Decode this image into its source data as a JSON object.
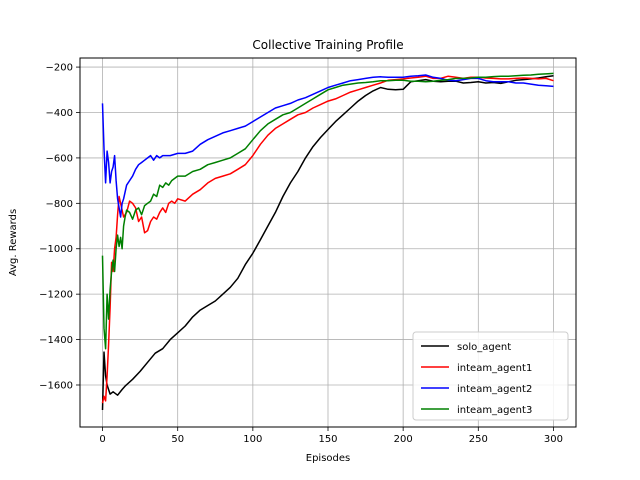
{
  "chart_data": {
    "type": "line",
    "title": "Collective Training Profile",
    "xlabel": "Episodes",
    "ylabel": "Avg. Rewards",
    "xlim": [
      -15,
      315
    ],
    "ylim": [
      -1785,
      -160
    ],
    "xticks": [
      0,
      50,
      100,
      150,
      200,
      250,
      300
    ],
    "yticks": [
      -1600,
      -1400,
      -1200,
      -1000,
      -800,
      -600,
      -400,
      -200
    ],
    "grid": true,
    "legend_position": "lower-right",
    "series": [
      {
        "name": "solo_agent",
        "color": "#000000",
        "points": [
          [
            0,
            -1710
          ],
          [
            1,
            -1455
          ],
          [
            2,
            -1560
          ],
          [
            3,
            -1600
          ],
          [
            5,
            -1640
          ],
          [
            7,
            -1630
          ],
          [
            10,
            -1645
          ],
          [
            13,
            -1620
          ],
          [
            15,
            -1605
          ],
          [
            20,
            -1575
          ],
          [
            25,
            -1540
          ],
          [
            30,
            -1500
          ],
          [
            35,
            -1460
          ],
          [
            40,
            -1440
          ],
          [
            45,
            -1400
          ],
          [
            50,
            -1370
          ],
          [
            55,
            -1340
          ],
          [
            60,
            -1300
          ],
          [
            65,
            -1270
          ],
          [
            70,
            -1250
          ],
          [
            75,
            -1230
          ],
          [
            80,
            -1200
          ],
          [
            85,
            -1170
          ],
          [
            90,
            -1130
          ],
          [
            95,
            -1070
          ],
          [
            100,
            -1020
          ],
          [
            105,
            -960
          ],
          [
            110,
            -900
          ],
          [
            115,
            -840
          ],
          [
            120,
            -770
          ],
          [
            125,
            -710
          ],
          [
            130,
            -660
          ],
          [
            135,
            -600
          ],
          [
            140,
            -550
          ],
          [
            145,
            -510
          ],
          [
            150,
            -475
          ],
          [
            155,
            -440
          ],
          [
            160,
            -410
          ],
          [
            165,
            -380
          ],
          [
            170,
            -350
          ],
          [
            175,
            -325
          ],
          [
            180,
            -305
          ],
          [
            185,
            -290
          ],
          [
            190,
            -298
          ],
          [
            195,
            -300
          ],
          [
            200,
            -298
          ],
          [
            205,
            -265
          ],
          [
            210,
            -260
          ],
          [
            215,
            -255
          ],
          [
            220,
            -262
          ],
          [
            225,
            -265
          ],
          [
            230,
            -262
          ],
          [
            235,
            -262
          ],
          [
            240,
            -270
          ],
          [
            245,
            -268
          ],
          [
            250,
            -265
          ],
          [
            255,
            -270
          ],
          [
            260,
            -268
          ],
          [
            265,
            -272
          ],
          [
            270,
            -265
          ],
          [
            275,
            -258
          ],
          [
            280,
            -255
          ],
          [
            285,
            -252
          ],
          [
            290,
            -248
          ],
          [
            295,
            -243
          ],
          [
            300,
            -238
          ]
        ]
      },
      {
        "name": "inteam_agent1",
        "color": "#ff0000",
        "points": [
          [
            0,
            -1680
          ],
          [
            1,
            -1650
          ],
          [
            2,
            -1670
          ],
          [
            3,
            -1560
          ],
          [
            4,
            -1420
          ],
          [
            5,
            -1260
          ],
          [
            6,
            -1060
          ],
          [
            7,
            -1100
          ],
          [
            8,
            -1000
          ],
          [
            9,
            -950
          ],
          [
            10,
            -850
          ],
          [
            11,
            -770
          ],
          [
            12,
            -800
          ],
          [
            14,
            -860
          ],
          [
            16,
            -840
          ],
          [
            18,
            -790
          ],
          [
            20,
            -800
          ],
          [
            22,
            -820
          ],
          [
            24,
            -880
          ],
          [
            26,
            -860
          ],
          [
            28,
            -930
          ],
          [
            30,
            -920
          ],
          [
            32,
            -880
          ],
          [
            34,
            -860
          ],
          [
            36,
            -870
          ],
          [
            38,
            -840
          ],
          [
            40,
            -820
          ],
          [
            42,
            -840
          ],
          [
            44,
            -800
          ],
          [
            46,
            -790
          ],
          [
            48,
            -800
          ],
          [
            50,
            -780
          ],
          [
            55,
            -790
          ],
          [
            60,
            -760
          ],
          [
            65,
            -740
          ],
          [
            70,
            -710
          ],
          [
            75,
            -690
          ],
          [
            80,
            -680
          ],
          [
            85,
            -670
          ],
          [
            90,
            -650
          ],
          [
            95,
            -630
          ],
          [
            100,
            -590
          ],
          [
            105,
            -540
          ],
          [
            110,
            -500
          ],
          [
            115,
            -470
          ],
          [
            120,
            -450
          ],
          [
            125,
            -430
          ],
          [
            130,
            -410
          ],
          [
            135,
            -400
          ],
          [
            140,
            -380
          ],
          [
            145,
            -365
          ],
          [
            150,
            -350
          ],
          [
            155,
            -340
          ],
          [
            160,
            -325
          ],
          [
            165,
            -310
          ],
          [
            170,
            -300
          ],
          [
            175,
            -290
          ],
          [
            180,
            -280
          ],
          [
            185,
            -270
          ],
          [
            190,
            -258
          ],
          [
            195,
            -255
          ],
          [
            200,
            -252
          ],
          [
            205,
            -248
          ],
          [
            210,
            -245
          ],
          [
            215,
            -240
          ],
          [
            220,
            -250
          ],
          [
            225,
            -250
          ],
          [
            230,
            -240
          ],
          [
            235,
            -245
          ],
          [
            240,
            -250
          ],
          [
            245,
            -245
          ],
          [
            250,
            -245
          ],
          [
            255,
            -248
          ],
          [
            260,
            -250
          ],
          [
            265,
            -252
          ],
          [
            270,
            -252
          ],
          [
            275,
            -250
          ],
          [
            280,
            -248
          ],
          [
            285,
            -250
          ],
          [
            290,
            -252
          ],
          [
            295,
            -250
          ],
          [
            300,
            -260
          ]
        ]
      },
      {
        "name": "inteam_agent2",
        "color": "#0000ff",
        "points": [
          [
            0,
            -360
          ],
          [
            1,
            -560
          ],
          [
            2,
            -710
          ],
          [
            3,
            -570
          ],
          [
            4,
            -620
          ],
          [
            5,
            -710
          ],
          [
            6,
            -660
          ],
          [
            7,
            -640
          ],
          [
            8,
            -590
          ],
          [
            9,
            -700
          ],
          [
            10,
            -780
          ],
          [
            11,
            -820
          ],
          [
            12,
            -860
          ],
          [
            13,
            -800
          ],
          [
            14,
            -780
          ],
          [
            16,
            -720
          ],
          [
            18,
            -700
          ],
          [
            20,
            -680
          ],
          [
            22,
            -650
          ],
          [
            24,
            -630
          ],
          [
            26,
            -620
          ],
          [
            28,
            -610
          ],
          [
            30,
            -600
          ],
          [
            32,
            -590
          ],
          [
            34,
            -610
          ],
          [
            36,
            -590
          ],
          [
            38,
            -600
          ],
          [
            40,
            -590
          ],
          [
            45,
            -590
          ],
          [
            50,
            -580
          ],
          [
            55,
            -580
          ],
          [
            60,
            -570
          ],
          [
            65,
            -540
          ],
          [
            70,
            -520
          ],
          [
            75,
            -505
          ],
          [
            80,
            -490
          ],
          [
            85,
            -480
          ],
          [
            90,
            -470
          ],
          [
            95,
            -460
          ],
          [
            100,
            -440
          ],
          [
            105,
            -420
          ],
          [
            110,
            -400
          ],
          [
            115,
            -380
          ],
          [
            120,
            -370
          ],
          [
            125,
            -360
          ],
          [
            130,
            -345
          ],
          [
            135,
            -335
          ],
          [
            140,
            -320
          ],
          [
            145,
            -305
          ],
          [
            150,
            -290
          ],
          [
            155,
            -280
          ],
          [
            160,
            -270
          ],
          [
            165,
            -260
          ],
          [
            170,
            -255
          ],
          [
            175,
            -250
          ],
          [
            180,
            -245
          ],
          [
            185,
            -243
          ],
          [
            190,
            -245
          ],
          [
            195,
            -245
          ],
          [
            200,
            -245
          ],
          [
            205,
            -240
          ],
          [
            210,
            -238
          ],
          [
            215,
            -235
          ],
          [
            220,
            -245
          ],
          [
            225,
            -250
          ],
          [
            230,
            -258
          ],
          [
            235,
            -260
          ],
          [
            240,
            -255
          ],
          [
            245,
            -250
          ],
          [
            250,
            -250
          ],
          [
            255,
            -260
          ],
          [
            260,
            -265
          ],
          [
            265,
            -265
          ],
          [
            270,
            -265
          ],
          [
            275,
            -270
          ],
          [
            280,
            -270
          ],
          [
            285,
            -275
          ],
          [
            290,
            -280
          ],
          [
            295,
            -282
          ],
          [
            300,
            -285
          ]
        ]
      },
      {
        "name": "inteam_agent3",
        "color": "#008000",
        "points": [
          [
            0,
            -1030
          ],
          [
            1,
            -1350
          ],
          [
            2,
            -1440
          ],
          [
            3,
            -1200
          ],
          [
            4,
            -1310
          ],
          [
            5,
            -1180
          ],
          [
            6,
            -1100
          ],
          [
            7,
            -1050
          ],
          [
            8,
            -1100
          ],
          [
            9,
            -1000
          ],
          [
            10,
            -940
          ],
          [
            11,
            -990
          ],
          [
            12,
            -950
          ],
          [
            13,
            -1000
          ],
          [
            14,
            -900
          ],
          [
            15,
            -860
          ],
          [
            16,
            -830
          ],
          [
            18,
            -840
          ],
          [
            20,
            -870
          ],
          [
            22,
            -830
          ],
          [
            24,
            -820
          ],
          [
            26,
            -850
          ],
          [
            28,
            -810
          ],
          [
            30,
            -800
          ],
          [
            32,
            -790
          ],
          [
            34,
            -760
          ],
          [
            36,
            -770
          ],
          [
            38,
            -720
          ],
          [
            40,
            -730
          ],
          [
            42,
            -710
          ],
          [
            44,
            -720
          ],
          [
            46,
            -700
          ],
          [
            48,
            -690
          ],
          [
            50,
            -680
          ],
          [
            55,
            -680
          ],
          [
            60,
            -660
          ],
          [
            65,
            -650
          ],
          [
            70,
            -630
          ],
          [
            75,
            -620
          ],
          [
            80,
            -610
          ],
          [
            85,
            -600
          ],
          [
            90,
            -580
          ],
          [
            95,
            -560
          ],
          [
            100,
            -520
          ],
          [
            105,
            -480
          ],
          [
            110,
            -450
          ],
          [
            115,
            -430
          ],
          [
            120,
            -410
          ],
          [
            125,
            -400
          ],
          [
            130,
            -380
          ],
          [
            135,
            -360
          ],
          [
            140,
            -340
          ],
          [
            145,
            -320
          ],
          [
            150,
            -300
          ],
          [
            155,
            -290
          ],
          [
            160,
            -280
          ],
          [
            165,
            -275
          ],
          [
            170,
            -270
          ],
          [
            175,
            -268
          ],
          [
            180,
            -265
          ],
          [
            185,
            -260
          ],
          [
            190,
            -260
          ],
          [
            195,
            -258
          ],
          [
            200,
            -258
          ],
          [
            205,
            -262
          ],
          [
            210,
            -262
          ],
          [
            215,
            -265
          ],
          [
            220,
            -262
          ],
          [
            225,
            -258
          ],
          [
            230,
            -255
          ],
          [
            235,
            -250
          ],
          [
            240,
            -250
          ],
          [
            245,
            -248
          ],
          [
            250,
            -245
          ],
          [
            255,
            -245
          ],
          [
            260,
            -242
          ],
          [
            265,
            -240
          ],
          [
            270,
            -240
          ],
          [
            275,
            -238
          ],
          [
            280,
            -236
          ],
          [
            285,
            -235
          ],
          [
            290,
            -232
          ],
          [
            295,
            -230
          ],
          [
            300,
            -228
          ]
        ]
      }
    ]
  }
}
